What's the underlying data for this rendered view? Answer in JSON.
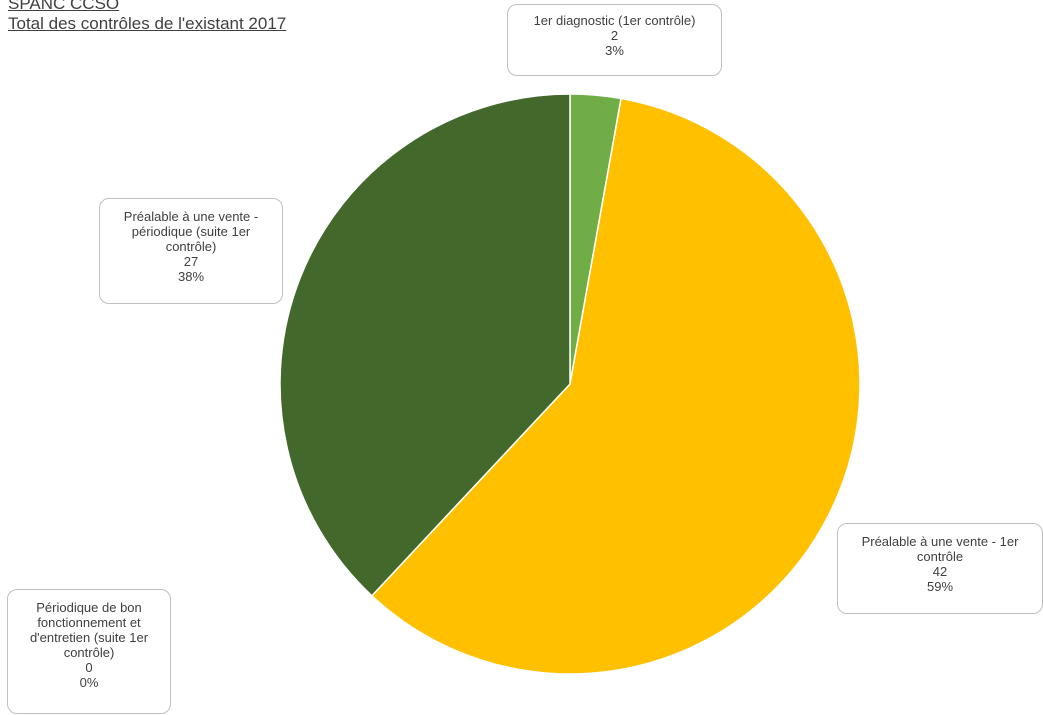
{
  "header": {
    "line1": "SPANC CCSO",
    "line2": "Total des contrôles de l'existant 2017"
  },
  "chart_data": {
    "type": "pie",
    "title": "Total des contrôles de l'existant 2017",
    "slices": [
      {
        "label": "1er diagnostic (1er contrôle)",
        "value": 2,
        "percent": "3%",
        "color": "#70ad47"
      },
      {
        "label": "Préalable à une vente - 1er contrôle",
        "value": 42,
        "percent": "59%",
        "color": "#ffc000"
      },
      {
        "label": "Périodique de bon fonctionnement et d'entretien (suite 1er contrôle)",
        "value": 0,
        "percent": "0%",
        "color": "#a5a5a5"
      },
      {
        "label": "Préalable à une vente - périodique (suite 1er contrôle)",
        "value": 27,
        "percent": "38%",
        "color": "#43682b"
      }
    ]
  },
  "callouts": [
    {
      "lines": [
        "1er diagnostic (1er contrôle)"
      ],
      "value": "2",
      "percent": "3%"
    },
    {
      "lines": [
        "Préalable à une vente - 1er",
        "contrôle"
      ],
      "value": "42",
      "percent": "59%"
    },
    {
      "lines": [
        "Périodique de bon",
        "fonctionnement et",
        "d'entretien (suite 1er",
        "contrôle)"
      ],
      "value": "0",
      "percent": "0%"
    },
    {
      "lines": [
        "Préalable à une vente -",
        "périodique (suite 1er",
        "contrôle)"
      ],
      "value": "27",
      "percent": "38%"
    }
  ]
}
